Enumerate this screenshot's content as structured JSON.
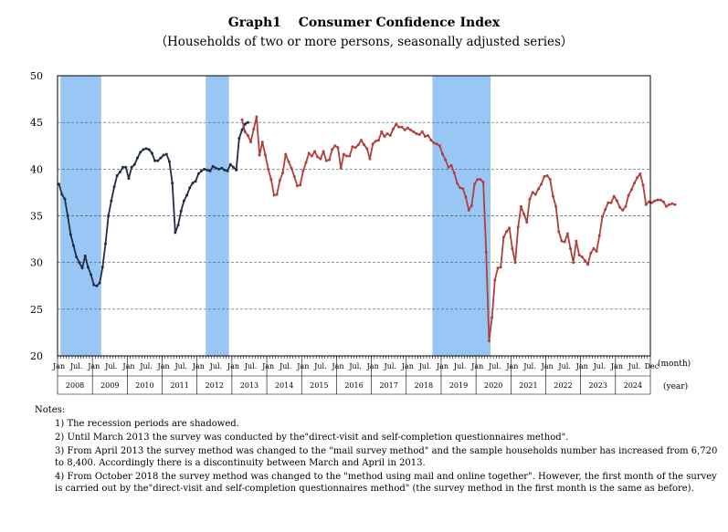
{
  "title": "Graph1　 Consumer Confidence Index",
  "subtitle": "（Households of two or more persons, seasonally adjusted series）",
  "notes": {
    "heading": "Notes:",
    "items": [
      "1) The recession periods are shadowed.",
      "2) Until March 2013 the survey was conducted by the\"direct-visit and self-completion questionnaires method\".",
      "3) From April 2013 the survey method was changed to the \"mail survey method\" and the sample households number has increased from 6,720 to 8,400. Accordingly there is a discontinuity between March and April in 2013.",
      "4) From October 2018 the survey method was changed to the \"method using mail and online together\". However, the first month of the survey is carried out by the\"direct-visit and self-completion questionnaires method\" (the survey method in the first month is the same as before)."
    ]
  },
  "colors": {
    "series1": "#1f2d45",
    "series2": "#b0403c",
    "recession": "#99c7f5"
  },
  "chart_data": {
    "type": "line",
    "ylim": [
      20,
      50
    ],
    "yticks": [
      20,
      25,
      30,
      35,
      40,
      45,
      50
    ],
    "xunit": "(month)",
    "yearunit": "(year)",
    "month_labels": [
      "Jan",
      "Jul."
    ],
    "last_month_label": "Dec",
    "years": [
      "2008",
      "2009",
      "2010",
      "2011",
      "2012",
      "2013",
      "2014",
      "2015",
      "2016",
      "2017",
      "2018",
      "2019",
      "2020",
      "2021",
      "2022",
      "2023",
      "2024"
    ],
    "grid": true,
    "recessions": [
      {
        "start": "2008-02",
        "end": "2009-03"
      },
      {
        "start": "2012-04",
        "end": "2012-11"
      },
      {
        "start": "2018-10",
        "end": "2020-05"
      }
    ],
    "series": [
      {
        "start": "2008-01",
        "values": [
          38.4,
          37.3,
          36.8,
          35.0,
          33.0,
          31.8,
          30.6,
          30.0,
          29.4,
          30.7,
          29.5,
          28.7,
          27.6,
          27.5,
          27.8,
          29.5,
          32.0,
          35.0,
          36.6,
          38.1,
          39.3,
          39.7,
          40.2,
          40.2,
          39.0,
          40.2,
          40.5,
          41.2,
          41.8,
          42.1,
          42.2,
          42.1,
          41.7,
          40.9,
          40.9,
          41.2,
          41.5,
          41.6,
          40.8,
          38.5,
          33.2,
          34.0,
          35.5,
          36.6,
          37.2,
          38.0,
          38.5,
          38.7,
          39.5,
          39.8,
          40.0,
          39.9,
          39.8,
          40.3,
          40.1,
          40.0,
          40.1,
          39.9,
          39.8,
          40.5,
          40.2,
          39.9,
          43.3,
          44.2,
          44.8,
          45.0
        ]
      },
      {
        "start": "2013-04",
        "values": [
          45.3,
          44.0,
          43.6,
          42.9,
          44.3,
          45.6,
          41.5,
          42.9,
          41.5,
          40.0,
          38.9,
          37.2,
          37.3,
          38.8,
          39.6,
          41.6,
          40.8,
          40.1,
          39.2,
          38.2,
          38.3,
          39.8,
          40.7,
          41.7,
          41.4,
          41.9,
          41.3,
          41.1,
          41.9,
          40.9,
          41.0,
          42.1,
          42.5,
          42.3,
          40.1,
          41.6,
          41.4,
          41.4,
          42.4,
          42.3,
          42.6,
          43.1,
          42.6,
          42.2,
          41.1,
          42.7,
          43.0,
          43.1,
          44.0,
          43.5,
          43.8,
          43.6,
          44.3,
          44.8,
          44.5,
          44.5,
          44.2,
          44.4,
          44.2,
          44.0,
          43.8,
          43.7,
          44.0,
          43.5,
          43.6,
          43.1,
          42.8,
          42.7,
          42.5,
          41.6,
          41.0,
          40.2,
          40.4,
          39.6,
          38.5,
          38.0,
          37.9,
          37.0,
          35.6,
          36.1,
          38.4,
          38.9,
          38.9,
          38.6,
          31.1,
          21.6,
          24.1,
          28.1,
          29.4,
          29.5,
          32.7,
          33.3,
          33.7,
          31.5,
          30.0,
          33.8,
          36.0,
          35.2,
          34.3,
          36.8,
          37.5,
          37.3,
          37.9,
          38.4,
          39.2,
          39.3,
          38.9,
          37.1,
          36.0,
          33.3,
          32.3,
          32.2,
          33.1,
          31.5,
          30.0,
          32.3,
          30.8,
          30.6,
          30.2,
          29.8,
          31.0,
          31.5,
          31.2,
          32.9,
          34.9,
          35.7,
          36.4,
          36.4,
          37.1,
          36.6,
          35.9,
          35.6,
          36.0,
          37.2,
          37.8,
          38.5,
          39.1,
          39.5,
          38.3,
          36.2,
          36.5,
          36.4,
          36.6,
          36.7,
          36.7,
          36.5,
          36.0,
          36.2,
          36.3,
          36.2
        ]
      }
    ]
  }
}
